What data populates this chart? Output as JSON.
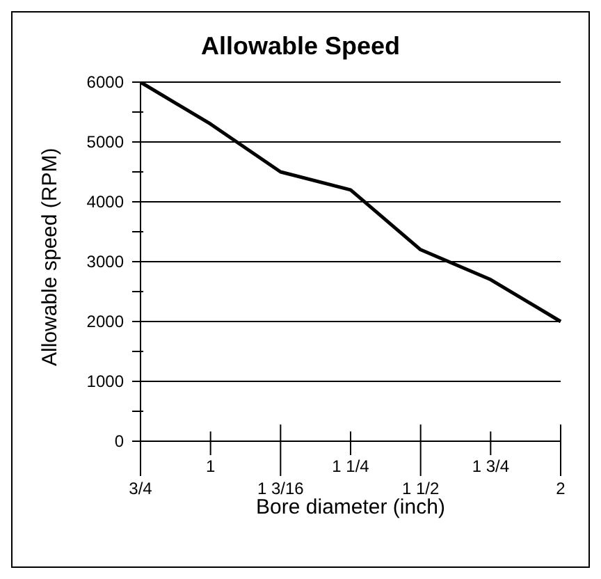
{
  "chart_data": {
    "type": "line",
    "title": "Allowable Speed",
    "xlabel": "Bore diameter (inch)",
    "ylabel": "Allowable speed (RPM)",
    "categories": [
      "3/4",
      "1",
      "1 3/16",
      "1 1/4",
      "1 1/2",
      "1 3/4",
      "2"
    ],
    "series": [
      {
        "color": "#000000",
        "values": [
          6000,
          5300,
          4500,
          4200,
          3200,
          2700,
          2000
        ]
      }
    ],
    "ylim": [
      0,
      6000
    ],
    "yticks": [
      0,
      {
        "value": 500,
        "label": null
      },
      1000,
      {
        "value": 1500,
        "label": null
      },
      2000,
      {
        "value": 2500,
        "label": null
      },
      3000,
      {
        "value": 3500,
        "label": null
      },
      4000,
      {
        "value": 4500,
        "label": null
      },
      5000,
      {
        "value": 5500,
        "label": null
      },
      6000
    ],
    "grid": "y",
    "legend": false,
    "marker": "none",
    "line_style": "solid"
  }
}
